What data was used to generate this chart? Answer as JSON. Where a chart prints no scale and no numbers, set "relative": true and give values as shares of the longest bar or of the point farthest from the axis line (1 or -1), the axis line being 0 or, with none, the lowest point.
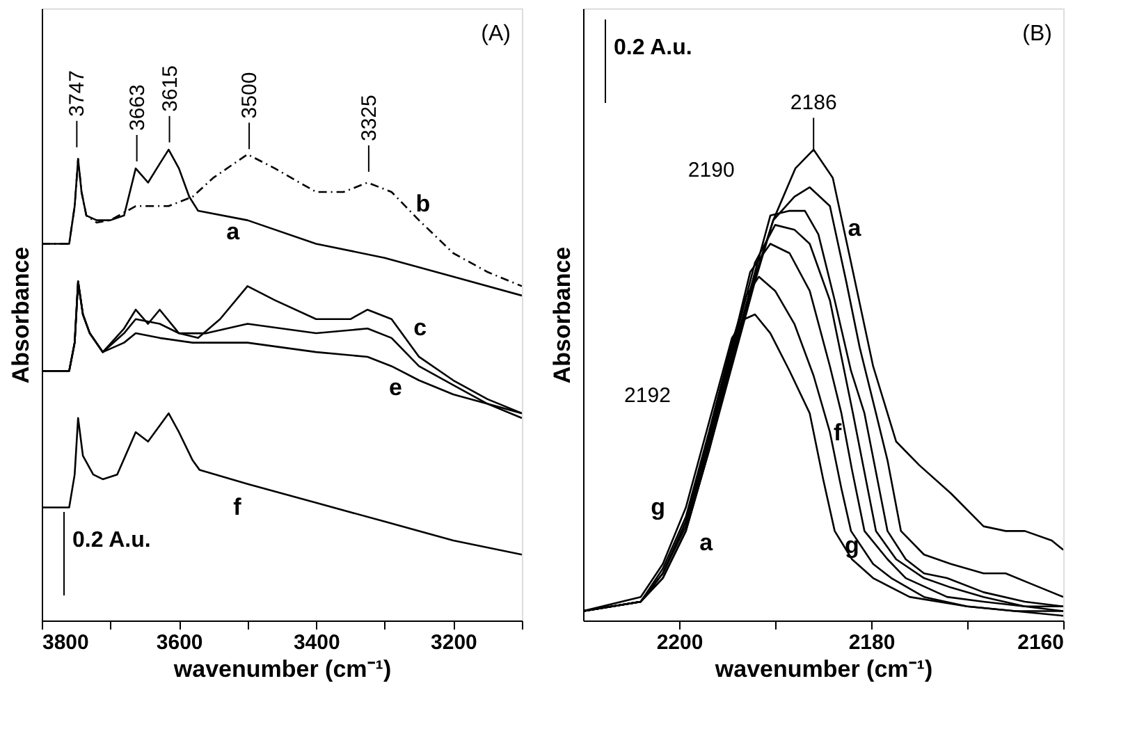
{
  "chart_data": [
    {
      "type": "line",
      "xlabel": "wavenumber (cm⁻¹)",
      "ylabel": "Absorbance",
      "relative": true,
      "xlim": [
        3800,
        3100
      ],
      "xticks": [
        3800,
        {
          "value": 3700,
          "label": null
        },
        3600,
        {
          "value": 3500,
          "label": null
        },
        3400,
        {
          "value": 3300,
          "label": null
        },
        3200,
        {
          "value": 3100,
          "label": null
        }
      ],
      "series": [
        {
          "color": "#000000",
          "line_style": "solid",
          "x": [
            3800,
            3760,
            3752,
            3747,
            3742,
            3735,
            3720,
            3700,
            3680,
            3663,
            3645,
            3628,
            3615,
            3600,
            3585,
            3572,
            3500,
            3400,
            3300,
            3200,
            3100
          ],
          "values": [
            0.8,
            0.8,
            0.88,
            0.98,
            0.91,
            0.86,
            0.85,
            0.85,
            0.86,
            0.96,
            0.93,
            0.97,
            1.0,
            0.96,
            0.9,
            0.87,
            0.85,
            0.8,
            0.77,
            0.73,
            0.69
          ]
        },
        {
          "color": "#000000",
          "line_style": "dashed",
          "x": [
            3800,
            3760,
            3752,
            3747,
            3742,
            3735,
            3720,
            3700,
            3663,
            3615,
            3580,
            3550,
            3500,
            3460,
            3400,
            3360,
            3325,
            3290,
            3250,
            3200,
            3150,
            3100
          ],
          "values": [
            0.8,
            0.8,
            0.88,
            0.98,
            0.91,
            0.86,
            0.845,
            0.85,
            0.88,
            0.88,
            0.9,
            0.94,
            0.99,
            0.96,
            0.91,
            0.91,
            0.93,
            0.91,
            0.85,
            0.78,
            0.74,
            0.71
          ]
        },
        {
          "color": "#000000",
          "line_style": "solid",
          "x": [
            3800,
            3760,
            3752,
            3747,
            3740,
            3730,
            3711,
            3680,
            3663,
            3645,
            3628,
            3600,
            3572,
            3540,
            3500,
            3460,
            3400,
            3350,
            3325,
            3290,
            3250,
            3200,
            3150,
            3100
          ],
          "values": [
            0.53,
            0.53,
            0.59,
            0.72,
            0.65,
            0.61,
            0.57,
            0.62,
            0.66,
            0.63,
            0.66,
            0.61,
            0.6,
            0.64,
            0.71,
            0.68,
            0.64,
            0.64,
            0.66,
            0.64,
            0.56,
            0.51,
            0.47,
            0.44
          ]
        },
        {
          "color": "#000000",
          "line_style": "solid",
          "x": [
            3800,
            3760,
            3752,
            3747,
            3740,
            3730,
            3711,
            3680,
            3663,
            3628,
            3600,
            3560,
            3500,
            3400,
            3325,
            3290,
            3250,
            3200,
            3150,
            3100
          ],
          "values": [
            0.53,
            0.53,
            0.59,
            0.72,
            0.65,
            0.61,
            0.57,
            0.61,
            0.64,
            0.63,
            0.61,
            0.61,
            0.63,
            0.61,
            0.62,
            0.6,
            0.54,
            0.5,
            0.46,
            0.44
          ]
        },
        {
          "color": "#000000",
          "line_style": "solid",
          "x": [
            3800,
            3760,
            3752,
            3747,
            3740,
            3730,
            3711,
            3680,
            3663,
            3628,
            3580,
            3500,
            3400,
            3325,
            3290,
            3250,
            3200,
            3150,
            3100
          ],
          "values": [
            0.53,
            0.53,
            0.59,
            0.72,
            0.65,
            0.61,
            0.57,
            0.59,
            0.61,
            0.6,
            0.59,
            0.59,
            0.57,
            0.56,
            0.54,
            0.51,
            0.48,
            0.46,
            0.43
          ]
        },
        {
          "color": "#000000",
          "line_style": "solid",
          "x": [
            3800,
            3760,
            3752,
            3747,
            3740,
            3725,
            3711,
            3690,
            3663,
            3645,
            3615,
            3600,
            3580,
            3570,
            3500,
            3400,
            3300,
            3200,
            3100
          ],
          "values": [
            0.24,
            0.24,
            0.31,
            0.43,
            0.35,
            0.31,
            0.3,
            0.31,
            0.4,
            0.38,
            0.44,
            0.4,
            0.34,
            0.32,
            0.29,
            0.25,
            0.21,
            0.17,
            0.14
          ]
        }
      ],
      "annotations": [
        "3747",
        "3663",
        "3615",
        "3500",
        "3325",
        "a",
        "b",
        "c",
        "e",
        "f",
        "(A)",
        "0.2 A.u."
      ]
    },
    {
      "type": "line",
      "xlabel": "wavenumber (cm⁻¹)",
      "ylabel": "Absorbance",
      "relative": true,
      "xlim": [
        2210,
        2160
      ],
      "xticks": [
        2200,
        {
          "value": 2190,
          "label": null
        },
        2180,
        {
          "value": 2170,
          "label": null
        },
        2160
      ],
      "series": [
        {
          "color": "#000000",
          "line_style": "solid",
          "x": [
            2210,
            2204,
            2201.7,
            2199.3,
            2196.9,
            2194.5,
            2192.1,
            2190.2,
            2187.9,
            2186,
            2184,
            2182.1,
            2179.8,
            2177.4,
            2175,
            2171.7,
            2168.3,
            2166,
            2164,
            2161.2,
            2160
          ],
          "values": [
            0.02,
            0.04,
            0.09,
            0.19,
            0.36,
            0.54,
            0.72,
            0.85,
            0.96,
            1.0,
            0.94,
            0.76,
            0.54,
            0.38,
            0.33,
            0.27,
            0.2,
            0.19,
            0.19,
            0.17,
            0.15
          ]
        },
        {
          "color": "#000000",
          "line_style": "solid",
          "x": [
            2210,
            2204,
            2201.7,
            2199.3,
            2196.9,
            2194.5,
            2192.1,
            2190.2,
            2188,
            2186.4,
            2184.3,
            2182.6,
            2181.2,
            2179.5,
            2178.3,
            2176.9,
            2174.5,
            2171.7,
            2168.3,
            2166,
            2163.6,
            2160
          ],
          "values": [
            0.02,
            0.04,
            0.09,
            0.19,
            0.36,
            0.55,
            0.73,
            0.85,
            0.9,
            0.92,
            0.88,
            0.72,
            0.58,
            0.44,
            0.34,
            0.19,
            0.14,
            0.12,
            0.1,
            0.1,
            0.08,
            0.05
          ]
        },
        {
          "color": "#000000",
          "line_style": "solid",
          "x": [
            2210,
            2204,
            2201.7,
            2199.3,
            2196.9,
            2194.5,
            2192.1,
            2190.5,
            2188.5,
            2186.9,
            2185.5,
            2183.8,
            2182.1,
            2180.7,
            2178.3,
            2176.4,
            2174.5,
            2172.1,
            2168.3,
            2164,
            2160
          ],
          "values": [
            0.02,
            0.04,
            0.1,
            0.2,
            0.37,
            0.56,
            0.74,
            0.86,
            0.87,
            0.87,
            0.82,
            0.68,
            0.53,
            0.44,
            0.19,
            0.13,
            0.1,
            0.09,
            0.06,
            0.04,
            0.03
          ]
        },
        {
          "color": "#000000",
          "line_style": "solid",
          "x": [
            2210,
            2204,
            2201.7,
            2199.3,
            2196.9,
            2194.5,
            2192.1,
            2190,
            2188,
            2186.4,
            2184.3,
            2181.9,
            2179.5,
            2177.4,
            2174.5,
            2171.7,
            2168.3,
            2164,
            2160
          ],
          "values": [
            0.02,
            0.04,
            0.1,
            0.21,
            0.38,
            0.57,
            0.76,
            0.84,
            0.83,
            0.8,
            0.68,
            0.44,
            0.19,
            0.13,
            0.09,
            0.07,
            0.05,
            0.03,
            0.03
          ]
        },
        {
          "color": "#000000",
          "line_style": "solid",
          "x": [
            2210,
            2204,
            2201.7,
            2199.3,
            2196.9,
            2194.5,
            2192.6,
            2190.5,
            2188.5,
            2186.4,
            2184.3,
            2183.1,
            2182,
            2180.7,
            2178.3,
            2176.4,
            2172.1,
            2168.3,
            2164,
            2160
          ],
          "values": [
            0.02,
            0.04,
            0.1,
            0.21,
            0.39,
            0.58,
            0.74,
            0.8,
            0.78,
            0.7,
            0.54,
            0.44,
            0.32,
            0.19,
            0.13,
            0.09,
            0.05,
            0.04,
            0.03,
            0.02
          ]
        },
        {
          "color": "#000000",
          "line_style": "solid",
          "x": [
            2210,
            2204,
            2201.7,
            2199.3,
            2196.9,
            2194.5,
            2193,
            2191.7,
            2190,
            2188,
            2186,
            2184.3,
            2183.1,
            2182.1,
            2179.8,
            2177.9,
            2174.5,
            2170,
            2165,
            2160
          ],
          "values": [
            0.02,
            0.04,
            0.11,
            0.22,
            0.4,
            0.59,
            0.69,
            0.73,
            0.7,
            0.63,
            0.52,
            0.4,
            0.28,
            0.19,
            0.12,
            0.09,
            0.05,
            0.03,
            0.02,
            0.02
          ]
        },
        {
          "color": "#000000",
          "line_style": "solid",
          "x": [
            2210,
            2204,
            2201.7,
            2199.3,
            2196.9,
            2194.5,
            2193.2,
            2192.1,
            2190.5,
            2188.5,
            2186.4,
            2185,
            2183.8,
            2182,
            2179.8,
            2176,
            2170,
            2165,
            2160
          ],
          "values": [
            0.02,
            0.05,
            0.12,
            0.24,
            0.42,
            0.6,
            0.64,
            0.65,
            0.61,
            0.53,
            0.44,
            0.3,
            0.19,
            0.13,
            0.09,
            0.05,
            0.03,
            0.02,
            0.01
          ]
        }
      ],
      "annotations": [
        "2186",
        "2190",
        "2192",
        "a",
        "f",
        "g",
        "g",
        "a",
        "(B)",
        "0.2 A.u."
      ]
    }
  ]
}
